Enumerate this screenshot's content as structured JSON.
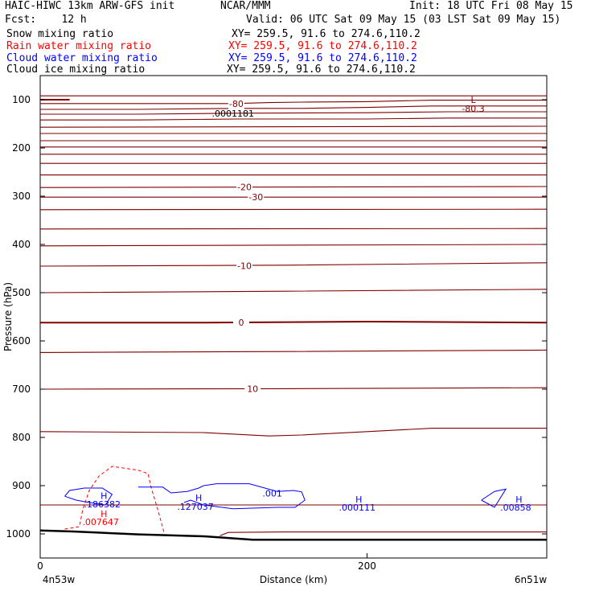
{
  "header": {
    "model": "HAIC-HIWC 13km ARW-GFS init",
    "org": "NCAR/MMM",
    "init": "Init: 18 UTC Fri 08 May 15",
    "fcst": "Fcst:    12 h",
    "valid": "Valid: 06 UTC Sat 09 May 15 (03 LST Sat 09 May 15)",
    "fields": [
      {
        "name": "Snow mixing ratio",
        "xy": "XY= 259.5, 91.6 to 274.6,110.2",
        "color": "#000000"
      },
      {
        "name": "Rain water mixing ratio",
        "xy": "XY= 259.5, 91.6 to 274.6,110.2",
        "color": "#ff0000"
      },
      {
        "name": "Cloud water mixing ratio",
        "xy": "XY= 259.5, 91.6 to 274.6,110.2",
        "color": "#0000ff"
      },
      {
        "name": "Cloud ice mixing ratio",
        "xy": "XY= 259.5, 91.6 to 274.6,110.2",
        "color": "#000000"
      }
    ]
  },
  "chart_data": {
    "type": "line",
    "xlabel": "Distance (km)",
    "ylabel": "Pressure (hPa)",
    "xlim": [
      0,
      310
    ],
    "ylim": [
      1050,
      50
    ],
    "yscale": "linear",
    "y_ticks": [
      100,
      200,
      300,
      400,
      500,
      600,
      700,
      800,
      900,
      1000
    ],
    "x_ticks": [
      0,
      200
    ],
    "x_end_labels": {
      "left": "4n53w",
      "right": "6n51w"
    },
    "colors": {
      "temperature": "#800000",
      "rain": "#ff0000",
      "cloud_water": "#0000ff",
      "terrain": "#000000"
    },
    "temperature_isotherm_labels": [
      {
        "text": "-80",
        "x": 120,
        "p": 108
      },
      {
        "text": "-30",
        "x": 132,
        "p": 302
      },
      {
        "text": "-20",
        "x": 125,
        "p": 281
      },
      {
        "text": "-10",
        "x": 125,
        "p": 444
      },
      {
        "text": "0",
        "x": 123,
        "p": 562
      },
      {
        "text": "10",
        "x": 130,
        "p": 699
      }
    ],
    "annotations": [
      {
        "text": "L",
        "x": 265,
        "p": 100,
        "color": "#800000"
      },
      {
        "text": "-80.3",
        "x": 265,
        "p": 118,
        "color": "#800000"
      },
      {
        "text": ".0001181",
        "x": 118,
        "p": 128,
        "color": "#000000"
      },
      {
        "text": "H",
        "x": 39,
        "p": 921,
        "color": "#0000ff"
      },
      {
        "text": ".186382",
        "x": 38,
        "p": 938,
        "color": "#0000ff"
      },
      {
        "text": "H",
        "x": 39,
        "p": 958,
        "color": "#ff0000"
      },
      {
        "text": ".007647",
        "x": 37,
        "p": 975,
        "color": "#ff0000"
      },
      {
        "text": "H",
        "x": 97,
        "p": 925,
        "color": "#0000ff"
      },
      {
        "text": ".127037",
        "x": 95,
        "p": 943,
        "color": "#0000ff"
      },
      {
        "text": ".001",
        "x": 142,
        "p": 916,
        "color": "#0000ff"
      },
      {
        "text": "H",
        "x": 195,
        "p": 928,
        "color": "#0000ff"
      },
      {
        "text": ".000111",
        "x": 194,
        "p": 945,
        "color": "#0000ff"
      },
      {
        "text": "H",
        "x": 293,
        "p": 928,
        "color": "#0000ff"
      },
      {
        "text": ".00858",
        "x": 291,
        "p": 945,
        "color": "#0000ff"
      }
    ],
    "temperature_isotherms": [
      {
        "x": [
          0,
          60,
          120,
          160,
          200,
          240,
          270,
          310
        ],
        "p": [
          92,
          92,
          92,
          92,
          92,
          92,
          92,
          92
        ]
      },
      {
        "x": [
          0,
          60,
          118,
          140,
          160,
          200,
          240,
          270,
          310
        ],
        "p": [
          108,
          108,
          108,
          106,
          105,
          104,
          101,
          101,
          101
        ]
      },
      {
        "x": [
          0,
          60,
          120,
          160,
          200,
          240,
          310
        ],
        "p": [
          120,
          120,
          118,
          118,
          116,
          113,
          113
        ]
      },
      {
        "x": [
          0,
          60,
          120,
          200,
          250,
          310
        ],
        "p": [
          130,
          130,
          128,
          127,
          125,
          125
        ]
      },
      {
        "x": [
          0,
          60,
          120,
          200,
          250,
          310
        ],
        "p": [
          142,
          142,
          140,
          140,
          138,
          138
        ]
      },
      {
        "x": [
          0,
          310
        ],
        "p": [
          157,
          155
        ]
      },
      {
        "x": [
          0,
          310
        ],
        "p": [
          170,
          170
        ]
      },
      {
        "x": [
          0,
          310
        ],
        "p": [
          185,
          185
        ]
      },
      {
        "x": [
          0,
          310
        ],
        "p": [
          198,
          198
        ]
      },
      {
        "x": [
          0,
          310
        ],
        "p": [
          213,
          213
        ]
      },
      {
        "x": [
          0,
          310
        ],
        "p": [
          232,
          232
        ]
      },
      {
        "x": [
          0,
          310
        ],
        "p": [
          256,
          256
        ]
      },
      {
        "x": [
          0,
          310
        ],
        "p": [
          282,
          280
        ]
      },
      {
        "x": [
          0,
          310
        ],
        "p": [
          302,
          302
        ]
      },
      {
        "x": [
          0,
          310
        ],
        "p": [
          328,
          327
        ]
      },
      {
        "x": [
          0,
          310
        ],
        "p": [
          368,
          367
        ]
      },
      {
        "x": [
          0,
          310
        ],
        "p": [
          403,
          400
        ]
      },
      {
        "x": [
          0,
          150,
          310
        ],
        "p": [
          445,
          443,
          438
        ]
      },
      {
        "x": [
          0,
          150,
          310
        ],
        "p": [
          500,
          497,
          493
        ]
      },
      {
        "x": [
          0,
          100,
          200,
          310
        ],
        "p": [
          562,
          562,
          560,
          562
        ]
      },
      {
        "x": [
          0,
          150,
          310
        ],
        "p": [
          624,
          622,
          619
        ]
      },
      {
        "x": [
          0,
          150,
          310
        ],
        "p": [
          700,
          699,
          697
        ]
      },
      {
        "x": [
          0,
          100,
          140,
          160,
          200,
          240,
          310
        ],
        "p": [
          788,
          790,
          797,
          795,
          788,
          781,
          781
        ]
      },
      {
        "x": [
          0,
          100,
          150,
          200,
          310
        ],
        "p": [
          940,
          940,
          940,
          940,
          940
        ]
      },
      {
        "x": [
          110,
          115,
          150,
          310
        ],
        "p": [
          1004,
          997,
          996,
          996
        ]
      }
    ],
    "rain_contours": [
      {
        "x": [
          15,
          24,
          26,
          30,
          36,
          44,
          60,
          66,
          68,
          72,
          76
        ],
        "p": [
          990,
          985,
          950,
          910,
          880,
          860,
          868,
          875,
          905,
          950,
          1000
        ]
      }
    ],
    "cloud_water_contours": [
      {
        "x": [
          15,
          18,
          27,
          38,
          44,
          40,
          30,
          22,
          15
        ],
        "p": [
          922,
          910,
          905,
          905,
          918,
          940,
          935,
          930,
          922
        ]
      },
      {
        "x": [
          60,
          75,
          80,
          90,
          97,
          100,
          108,
          128,
          145,
          155,
          160,
          162,
          156,
          145,
          118,
          100,
          92,
          88
        ],
        "p": [
          903,
          903,
          915,
          912,
          905,
          900,
          896,
          896,
          912,
          910,
          913,
          930,
          945,
          945,
          948,
          940,
          930,
          935
        ]
      },
      {
        "x": [
          270,
          278,
          285,
          278,
          270
        ],
        "p": [
          930,
          912,
          907,
          945,
          930
        ]
      }
    ],
    "terrain": {
      "x": [
        0,
        20,
        60,
        100,
        130,
        200,
        250,
        310
      ],
      "p": [
        993,
        995,
        1001,
        1005,
        1012,
        1012,
        1012,
        1012
      ]
    },
    "red_segment": {
      "x": [
        0,
        18
      ],
      "p": [
        100,
        100
      ]
    }
  }
}
